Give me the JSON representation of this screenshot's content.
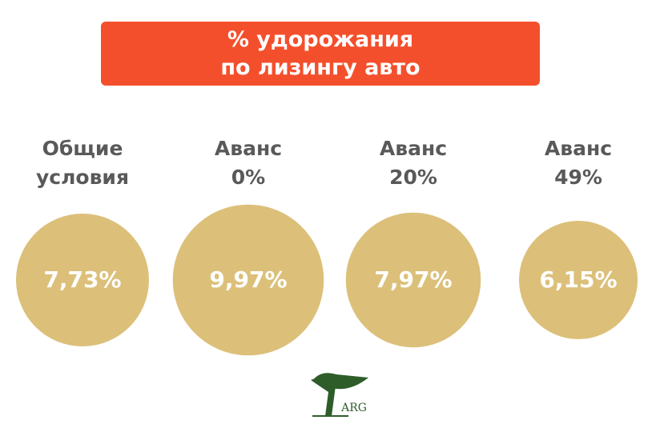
{
  "chart_data": {
    "type": "bubble",
    "title": "% удорожания\nпо лизингу авто",
    "categories": [
      "Общие\nусловия",
      "Аванс\n0%",
      "Аванс\n20%",
      "Аванс\n49%"
    ],
    "values": [
      7.73,
      9.97,
      7.97,
      6.15
    ],
    "value_labels": [
      "7,73%",
      "9,97%",
      "7,97%",
      "6,15%"
    ],
    "color": "#dcc07a",
    "title_color": "#f44f2c",
    "logo_text": "ARG"
  }
}
